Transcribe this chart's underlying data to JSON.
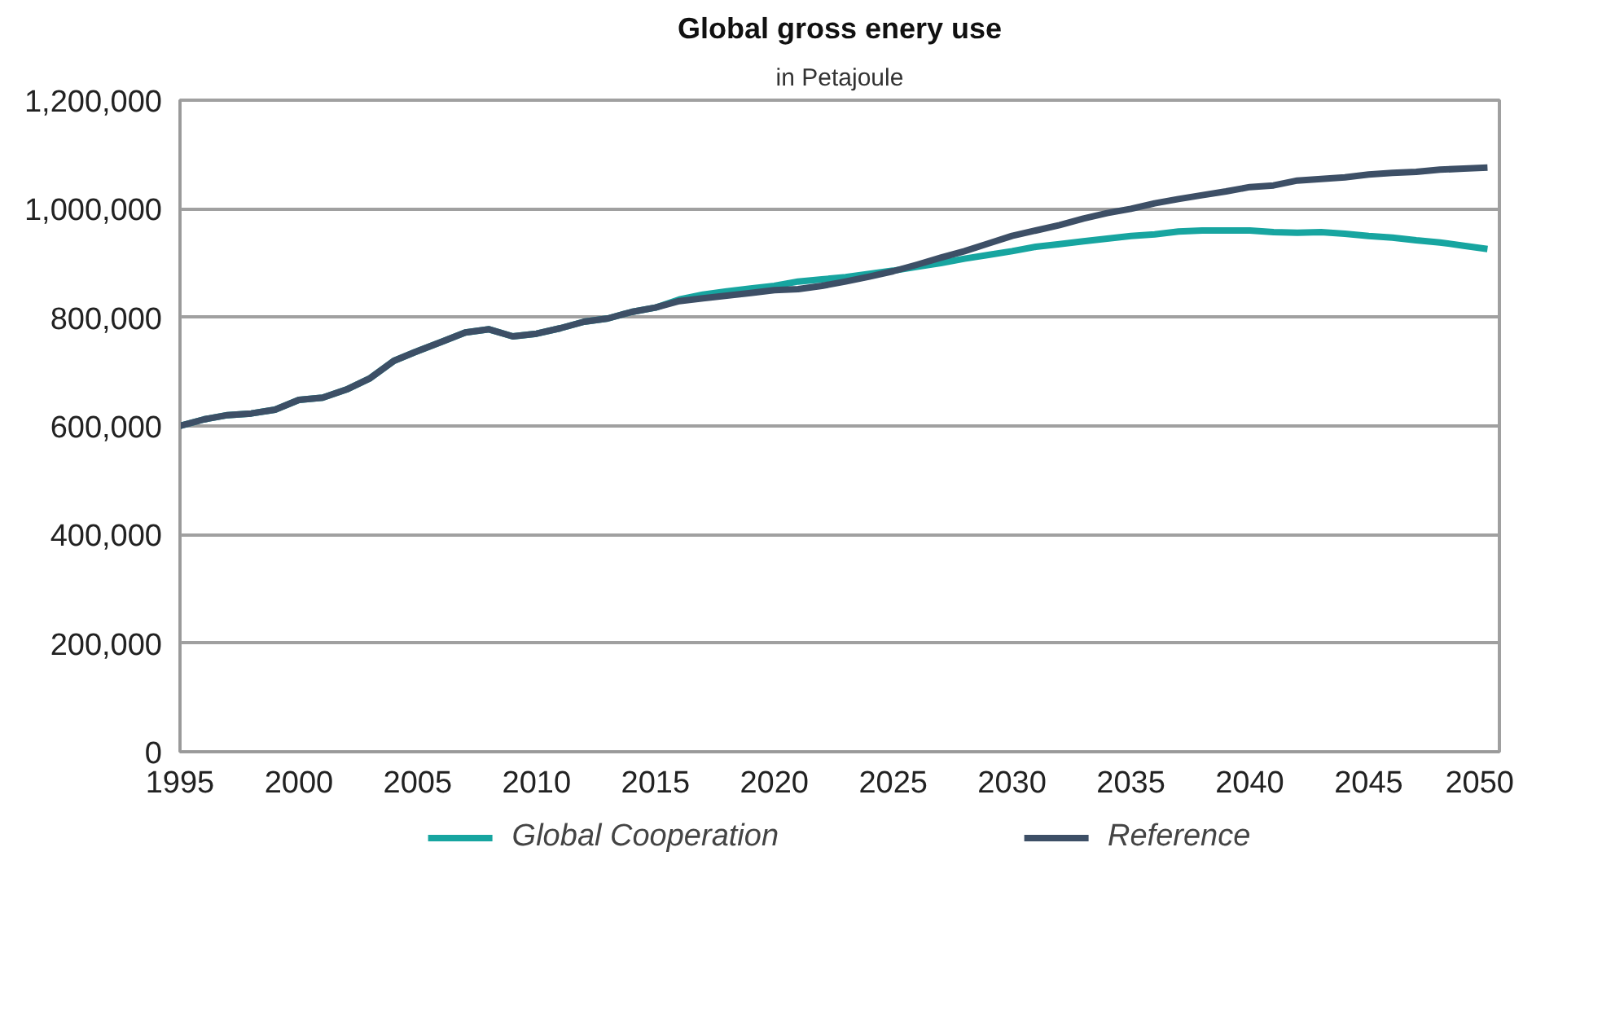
{
  "chart_data": {
    "type": "line",
    "title": "Global gross enery use",
    "subtitle": "in Petajoule",
    "x": [
      1995,
      1996,
      1997,
      1998,
      1999,
      2000,
      2001,
      2002,
      2003,
      2004,
      2005,
      2006,
      2007,
      2008,
      2009,
      2010,
      2011,
      2012,
      2013,
      2014,
      2015,
      2016,
      2017,
      2018,
      2019,
      2020,
      2021,
      2022,
      2023,
      2024,
      2025,
      2026,
      2027,
      2028,
      2029,
      2030,
      2031,
      2032,
      2033,
      2034,
      2035,
      2036,
      2037,
      2038,
      2039,
      2040,
      2041,
      2042,
      2043,
      2044,
      2045,
      2046,
      2047,
      2048,
      2049,
      2050
    ],
    "series": [
      {
        "name": "Global Cooperation",
        "color": "#17a5a0",
        "values": [
          600000,
          612000,
          620000,
          623000,
          630000,
          648000,
          652000,
          667000,
          688000,
          720000,
          738000,
          755000,
          772000,
          778000,
          765000,
          770000,
          780000,
          792000,
          798000,
          810000,
          818000,
          833000,
          842000,
          848000,
          853000,
          858000,
          866000,
          870000,
          874000,
          880000,
          886000,
          893000,
          900000,
          908000,
          915000,
          922000,
          930000,
          935000,
          940000,
          945000,
          950000,
          953000,
          958000,
          960000,
          960000,
          960000,
          957000,
          956000,
          957000,
          954000,
          950000,
          947000,
          942000,
          938000,
          932000,
          926000
        ]
      },
      {
        "name": "Reference",
        "color": "#3d4f66",
        "values": [
          600000,
          612000,
          620000,
          623000,
          630000,
          648000,
          652000,
          667000,
          688000,
          720000,
          738000,
          755000,
          772000,
          778000,
          765000,
          770000,
          780000,
          792000,
          798000,
          810000,
          818000,
          830000,
          835000,
          840000,
          845000,
          850000,
          852000,
          858000,
          866000,
          875000,
          885000,
          897000,
          910000,
          922000,
          936000,
          950000,
          960000,
          970000,
          982000,
          992000,
          1000000,
          1010000,
          1018000,
          1025000,
          1032000,
          1040000,
          1043000,
          1052000,
          1055000,
          1058000,
          1063000,
          1066000,
          1068000,
          1072000,
          1074000,
          1076000
        ]
      }
    ],
    "xlim": [
      1995,
      2050.5
    ],
    "xticks": [
      1995,
      2000,
      2005,
      2010,
      2015,
      2020,
      2025,
      2030,
      2035,
      2040,
      2045,
      2050
    ],
    "ylim": [
      0,
      1200000
    ],
    "yticks": [
      {
        "value": 0,
        "label": "0"
      },
      {
        "value": 200000,
        "label": "200,000"
      },
      {
        "value": 400000,
        "label": "400,000"
      },
      {
        "value": 600000,
        "label": "600,000"
      },
      {
        "value": 800000,
        "label": "800,000"
      },
      {
        "value": 1000000,
        "label": "1,000,000"
      },
      {
        "value": 1200000,
        "label": "1,200,000"
      }
    ],
    "grid": "y",
    "legend": "bottom",
    "marker": "none",
    "line_style": "solid"
  }
}
